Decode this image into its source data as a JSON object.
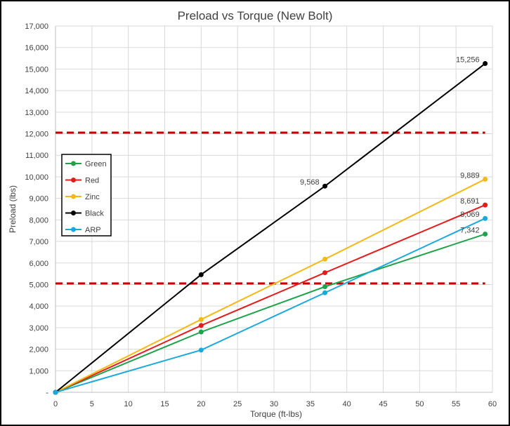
{
  "chart_data": {
    "type": "line",
    "title": "Preload vs Torque (New Bolt)",
    "xlabel": "Torque (ft-lbs)",
    "ylabel": "Preload (lbs)",
    "xlim": [
      0,
      60
    ],
    "ylim": [
      0,
      17000
    ],
    "x_ticks": [
      0,
      5,
      10,
      15,
      20,
      25,
      30,
      35,
      40,
      45,
      50,
      55,
      60
    ],
    "y_ticks": [
      0,
      1000,
      2000,
      3000,
      4000,
      5000,
      6000,
      7000,
      8000,
      9000,
      10000,
      11000,
      12000,
      13000,
      14000,
      15000,
      16000,
      17000
    ],
    "y_tick_labels": [
      "-",
      "1,000",
      "2,000",
      "3,000",
      "4,000",
      "5,000",
      "6,000",
      "7,000",
      "8,000",
      "9,000",
      "10,000",
      "11,000",
      "12,000",
      "13,000",
      "14,000",
      "15,000",
      "16,000",
      "17,000"
    ],
    "grid": true,
    "legend_position": "left",
    "series": [
      {
        "name": "Green",
        "color": "#1fa34a",
        "x": [
          0,
          20,
          37,
          59
        ],
        "y": [
          0,
          2800,
          4900,
          7342
        ],
        "labels": [
          null,
          null,
          null,
          "7,342"
        ]
      },
      {
        "name": "Red",
        "color": "#e51c1c",
        "x": [
          0,
          20,
          37,
          59
        ],
        "y": [
          0,
          3100,
          5550,
          8691
        ],
        "labels": [
          null,
          null,
          null,
          "8,691"
        ]
      },
      {
        "name": "Zinc",
        "color": "#f5b915",
        "x": [
          0,
          20,
          37,
          59
        ],
        "y": [
          0,
          3380,
          6180,
          9889
        ],
        "labels": [
          null,
          null,
          null,
          "9,889"
        ]
      },
      {
        "name": "Black",
        "color": "#000000",
        "x": [
          0,
          20,
          37,
          59
        ],
        "y": [
          0,
          5460,
          9568,
          15256
        ],
        "labels": [
          null,
          null,
          "9,568",
          "15,256"
        ]
      },
      {
        "name": "ARP",
        "color": "#1ba9dc",
        "x": [
          0,
          20,
          37,
          59
        ],
        "y": [
          0,
          1960,
          4620,
          8069
        ],
        "labels": [
          null,
          null,
          null,
          "8,069"
        ]
      }
    ],
    "reference_lines": [
      {
        "y": 12050,
        "color": "#cc0000",
        "style": "dashed",
        "x_range": [
          0,
          59
        ]
      },
      {
        "y": 5050,
        "color": "#cc0000",
        "style": "dashed",
        "x_range": [
          0,
          59
        ]
      }
    ]
  }
}
